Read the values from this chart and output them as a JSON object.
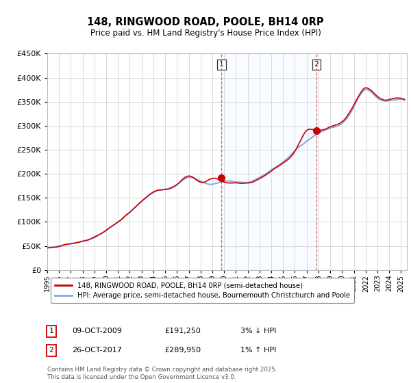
{
  "title": "148, RINGWOOD ROAD, POOLE, BH14 0RP",
  "subtitle": "Price paid vs. HM Land Registry's House Price Index (HPI)",
  "legend_line1": "148, RINGWOOD ROAD, POOLE, BH14 0RP (semi-detached house)",
  "legend_line2": "HPI: Average price, semi-detached house, Bournemouth Christchurch and Poole",
  "annotation1": {
    "label": "1",
    "date": "09-OCT-2009",
    "price": "£191,250",
    "pct": "3% ↓ HPI",
    "year": 2009.78
  },
  "annotation2": {
    "label": "2",
    "date": "26-OCT-2017",
    "price": "£289,950",
    "pct": "1% ↑ HPI",
    "year": 2017.82
  },
  "footnote": "Contains HM Land Registry data © Crown copyright and database right 2025.\nThis data is licensed under the Open Government Licence v3.0.",
  "ylim": [
    0,
    450000
  ],
  "yticks": [
    0,
    50000,
    100000,
    150000,
    200000,
    250000,
    300000,
    350000,
    400000,
    450000
  ],
  "xlim": [
    1995.0,
    2025.5
  ],
  "background_color": "#ffffff",
  "plot_bg_color": "#ffffff",
  "grid_color": "#cccccc",
  "hpi_color": "#88aadd",
  "price_color": "#cc0000",
  "shade_color": "#ddeeff",
  "vline_color": "#cc4444",
  "footnote_color": "#555555"
}
